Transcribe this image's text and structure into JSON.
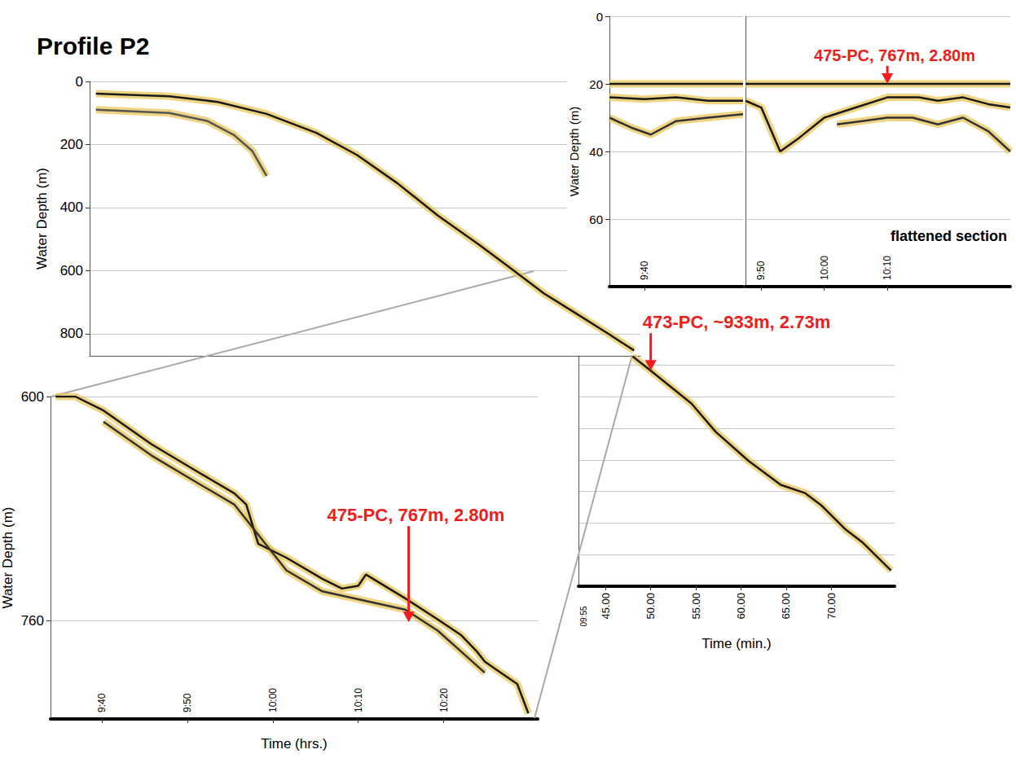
{
  "chart_data": [
    {
      "type": "line",
      "title": "Profile P2",
      "y_label": "Water Depth (m)",
      "xlim": [
        -13,
        48
      ],
      "ylim": [
        0,
        870
      ],
      "yticks": [
        0,
        200,
        400,
        600,
        800
      ],
      "grid": true,
      "tick_labels": "y",
      "series": [
        {
          "color": "#1a1a1a",
          "x": [
            -12.3,
            -4.2,
            1.2,
            6.6,
            12.1,
            16.6,
            21.1,
            25.6,
            30.1,
            33.7,
            37.3,
            40.9,
            44.5,
            47.3
          ],
          "values": [
            39,
            47,
            65,
            103,
            163,
            233,
            323,
            426,
            517,
            594,
            672,
            736,
            801,
            853
          ]
        },
        {
          "color": "#555555",
          "x": [
            -12.3,
            -4.2,
            0,
            3,
            5,
            6.6
          ],
          "values": [
            90,
            100,
            125,
            170,
            220,
            300
          ]
        }
      ]
    },
    {
      "type": "line",
      "x_label": "Time (min.)",
      "subtitle": "09:55",
      "xlim": [
        42,
        77
      ],
      "ylim": [
        870,
        1600
      ],
      "xticks": [
        {
          "value": 45,
          "label": "45.00"
        },
        {
          "value": 50,
          "label": "50.00"
        },
        {
          "value": 55,
          "label": "55.00"
        },
        {
          "value": 60,
          "label": "60.00"
        },
        {
          "value": 65,
          "label": "65.00"
        },
        {
          "value": 70,
          "label": "70.00"
        }
      ],
      "yticks": [
        900,
        1000,
        1100,
        1200,
        1300,
        1400,
        1500,
        1600
      ],
      "grid": true,
      "tick_labels": "x",
      "series": [
        {
          "color": "#1a1a1a",
          "x": [
            48,
            50,
            54.5,
            57.2,
            60.8,
            64.4,
            67.1,
            68.9,
            71.6,
            73.4,
            76.6
          ],
          "values": [
            872,
            917,
            1021,
            1111,
            1202,
            1279,
            1305,
            1344,
            1421,
            1460,
            1550
          ]
        }
      ],
      "annotations": [
        {
          "text": "473-PC, ~933m, 2.73m",
          "x": 50,
          "y": 917,
          "color": "#ee1c1c"
        }
      ]
    },
    {
      "type": "line",
      "x_label": "Time (hrs.)",
      "y_label": "Water Depth (m)",
      "xlim": [
        34,
        91
      ],
      "ylim": [
        600,
        830
      ],
      "xticks": [
        {
          "value": 40,
          "label": "9:40"
        },
        {
          "value": 50,
          "label": "9:50"
        },
        {
          "value": 60,
          "label": "10:00"
        },
        {
          "value": 70,
          "label": "10:10"
        },
        {
          "value": 80,
          "label": "10:20"
        }
      ],
      "yticks": [
        600,
        760
      ],
      "grid": true,
      "series": [
        {
          "color": "#1a1a1a",
          "x": [
            34.6,
            36.9,
            40.2,
            45.8,
            51.3,
            55.5,
            56.9,
            58.3,
            61.6,
            65.8,
            68.1,
            70,
            70.9,
            75.5,
            79.3,
            82,
            83.9,
            84.8,
            86.2,
            88.6,
            89.9
          ],
          "values": [
            600,
            600,
            610,
            634,
            654,
            669,
            677,
            705,
            715,
            730,
            737,
            735,
            727,
            744,
            759,
            770,
            782,
            789,
            795,
            805,
            826
          ]
        },
        {
          "color": "#333333",
          "x": [
            40.2,
            45.8,
            51.3,
            55.5,
            61.6,
            65.8,
            75.5,
            79.3,
            84.8
          ],
          "values": [
            618,
            642,
            662,
            677,
            724,
            739,
            752,
            767,
            797
          ]
        }
      ],
      "annotations": [
        {
          "text": "475-PC, 767m, 2.80m",
          "x": 75.9,
          "y": 761,
          "color": "#ee1c1c"
        }
      ]
    },
    {
      "type": "line",
      "y_label": "Water Depth (m)",
      "xlim": [
        34.5,
        55.5
      ],
      "ylim": [
        0,
        80
      ],
      "xticks": [
        {
          "value": 40,
          "label": "9:40"
        }
      ],
      "yticks": [
        0,
        20,
        40,
        60
      ],
      "grid": true,
      "series": [
        {
          "color": "#1a1a1a",
          "x": [
            34.5,
            55.5
          ],
          "values": [
            20,
            20
          ]
        },
        {
          "color": "#1a1a1a",
          "x": [
            34.5,
            40,
            45,
            50,
            55.5
          ],
          "values": [
            24,
            24.5,
            24,
            25,
            25
          ]
        },
        {
          "color": "#333333",
          "x": [
            34.5,
            38,
            41,
            45,
            50,
            55.5
          ],
          "values": [
            30,
            33,
            35,
            31,
            30,
            29
          ]
        }
      ]
    },
    {
      "type": "line",
      "subtitle": "flattened section",
      "xlim": [
        47.5,
        89.5
      ],
      "ylim": [
        0,
        80
      ],
      "xticks": [
        {
          "value": 50,
          "label": "9:50"
        },
        {
          "value": 60,
          "label": "10:00"
        },
        {
          "value": 70,
          "label": "10:10"
        }
      ],
      "yticks": [
        0,
        20,
        40,
        60
      ],
      "grid": true,
      "tick_labels": "x",
      "series": [
        {
          "color": "#1a1a1a",
          "x": [
            47.5,
            89.5
          ],
          "values": [
            20,
            20
          ]
        },
        {
          "color": "#1a1a1a",
          "x": [
            47.5,
            50,
            53,
            56,
            60,
            65,
            70,
            75,
            78,
            82,
            86,
            89.5
          ],
          "values": [
            25,
            27,
            40,
            36,
            30,
            27,
            24,
            24,
            25,
            24,
            26,
            27
          ]
        },
        {
          "color": "#333333",
          "x": [
            62,
            66,
            70,
            74,
            78,
            82,
            86,
            89.5
          ],
          "values": [
            32,
            31,
            30,
            30,
            32,
            30,
            34,
            40
          ]
        }
      ],
      "annotations": [
        {
          "text": "475-PC, 767m, 2.80m",
          "x": 70,
          "y": 20,
          "color": "#ee1c1c"
        }
      ]
    }
  ]
}
